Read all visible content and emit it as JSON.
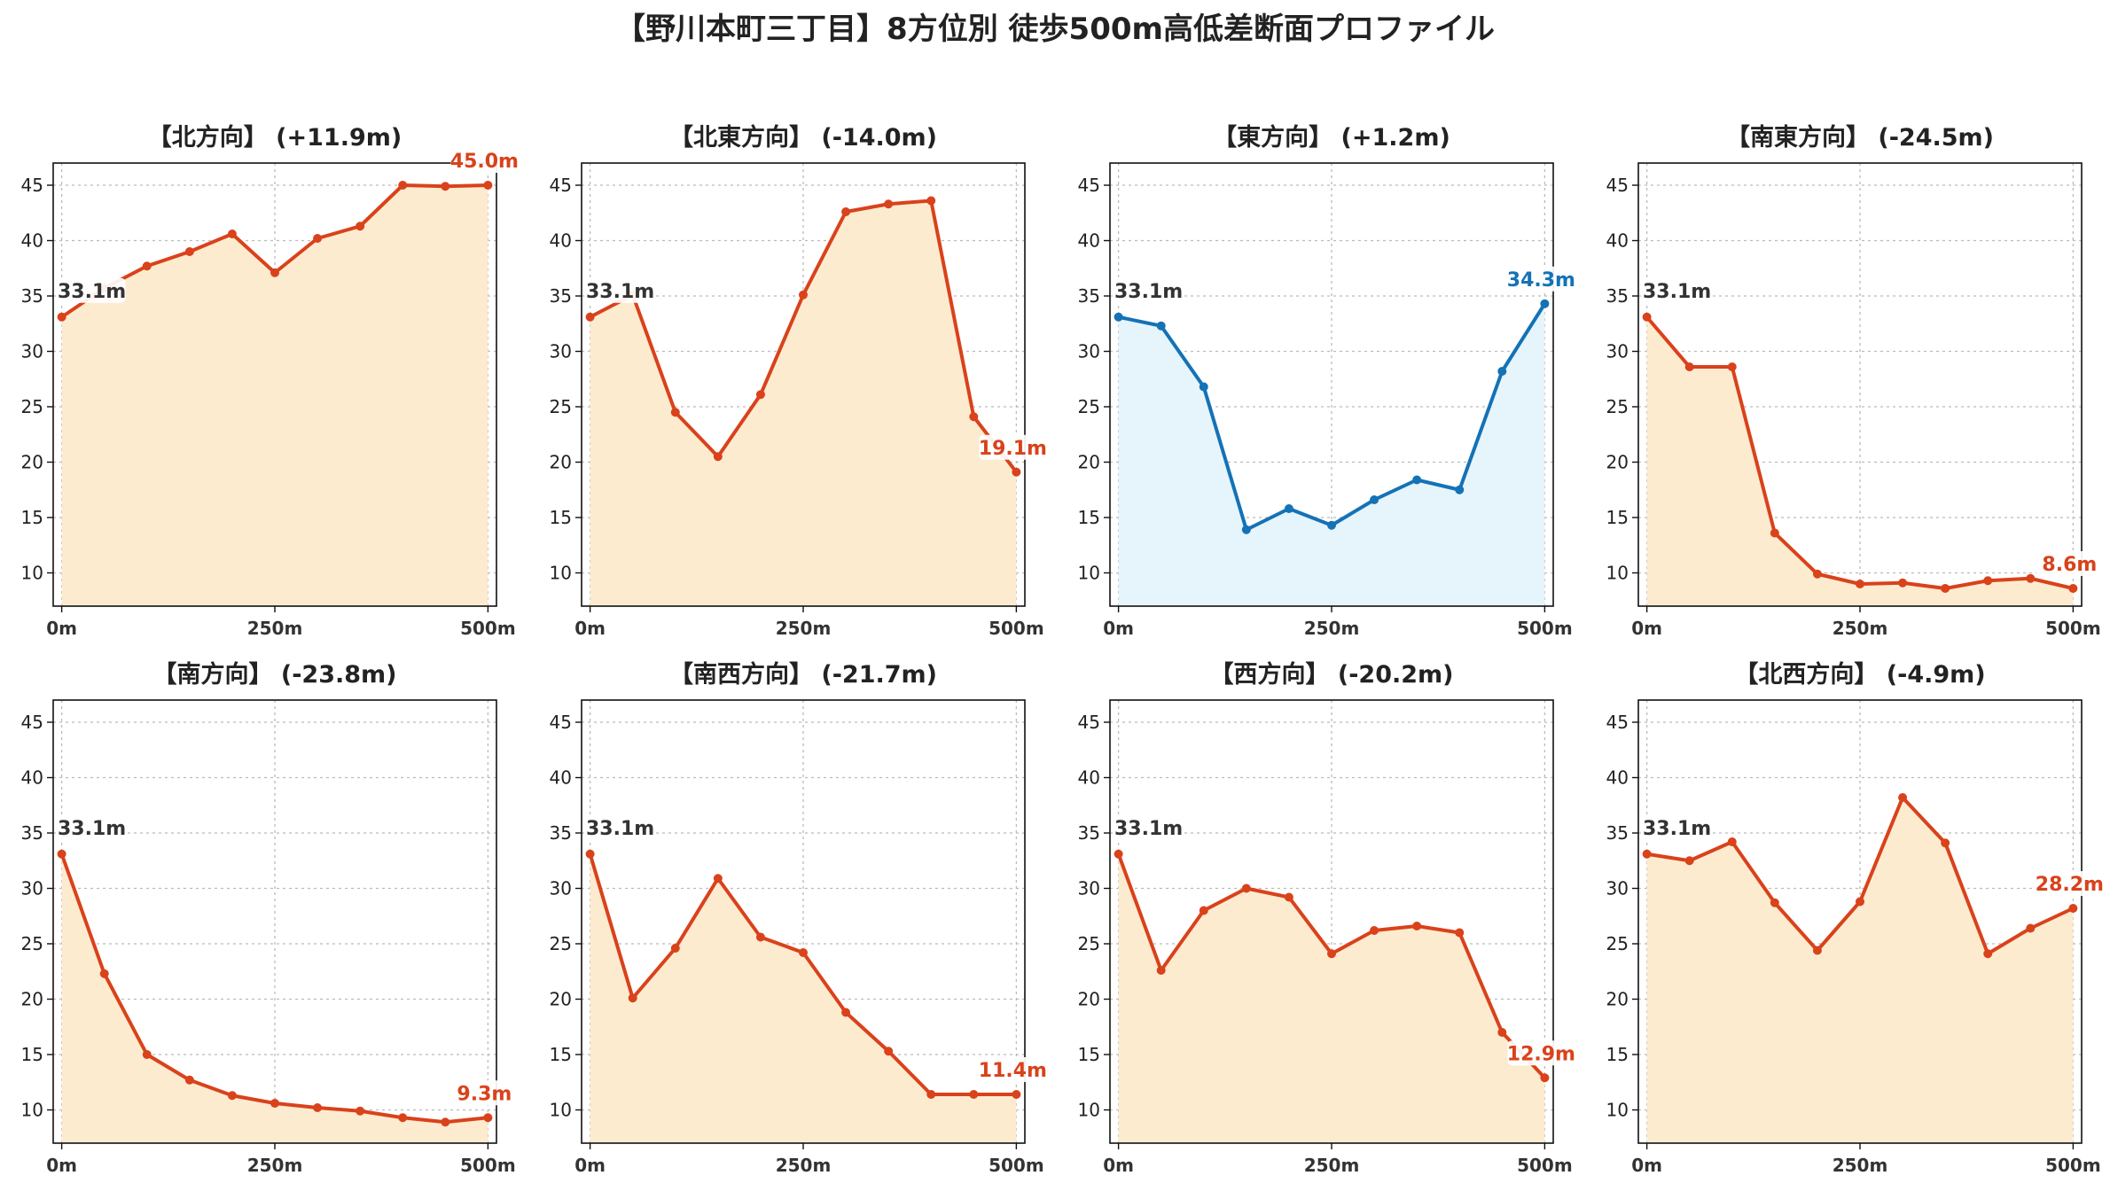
{
  "title": "【野川本町三丁目】8方位別 徒歩500m高低差断面プロファイル",
  "colors": {
    "down": "#d9421b",
    "down_fill": "#fdebd0",
    "up": "#1472b6",
    "up_fill": "#e6f4fb",
    "grid": "#bbbbbb",
    "start_label": "#333333"
  },
  "chart_data": [
    {
      "type": "area",
      "title": "【北方向】 (+11.9m)",
      "x": [
        0,
        50,
        100,
        150,
        200,
        250,
        300,
        350,
        400,
        450,
        500
      ],
      "values": [
        33.1,
        35.7,
        37.7,
        39.0,
        40.6,
        37.1,
        40.2,
        41.3,
        45.0,
        44.9,
        45.0
      ],
      "xticks": [
        "0m",
        "250m",
        "500m"
      ],
      "yticks": [
        10,
        15,
        20,
        25,
        30,
        35,
        40,
        45
      ],
      "ylim": [
        7,
        47
      ],
      "xlim": [
        -10,
        510
      ],
      "start_label": "33.1m",
      "end_label": "45.0m",
      "color": "down",
      "grid": true
    },
    {
      "type": "area",
      "title": "【北東方向】 (-14.0m)",
      "x": [
        0,
        50,
        100,
        150,
        200,
        250,
        300,
        350,
        400,
        450,
        500
      ],
      "values": [
        33.1,
        35.1,
        24.5,
        20.5,
        26.1,
        35.1,
        42.6,
        43.3,
        43.6,
        24.1,
        19.1
      ],
      "xticks": [
        "0m",
        "250m",
        "500m"
      ],
      "yticks": [
        10,
        15,
        20,
        25,
        30,
        35,
        40,
        45
      ],
      "ylim": [
        7,
        47
      ],
      "xlim": [
        -10,
        510
      ],
      "start_label": "33.1m",
      "end_label": "19.1m",
      "color": "down",
      "grid": true
    },
    {
      "type": "area",
      "title": "【東方向】 (+1.2m)",
      "x": [
        0,
        50,
        100,
        150,
        200,
        250,
        300,
        350,
        400,
        450,
        500
      ],
      "values": [
        33.1,
        32.3,
        26.8,
        13.9,
        15.8,
        14.3,
        16.6,
        18.4,
        17.5,
        28.2,
        34.3
      ],
      "xticks": [
        "0m",
        "250m",
        "500m"
      ],
      "yticks": [
        10,
        15,
        20,
        25,
        30,
        35,
        40,
        45
      ],
      "ylim": [
        7,
        47
      ],
      "xlim": [
        -10,
        510
      ],
      "start_label": "33.1m",
      "end_label": "34.3m",
      "color": "up",
      "grid": true
    },
    {
      "type": "area",
      "title": "【南東方向】 (-24.5m)",
      "x": [
        0,
        50,
        100,
        150,
        200,
        250,
        300,
        350,
        400,
        450,
        500
      ],
      "values": [
        33.1,
        28.6,
        28.6,
        13.6,
        9.9,
        9.0,
        9.1,
        8.6,
        9.3,
        9.5,
        8.6
      ],
      "xticks": [
        "0m",
        "250m",
        "500m"
      ],
      "yticks": [
        10,
        15,
        20,
        25,
        30,
        35,
        40,
        45
      ],
      "ylim": [
        7,
        47
      ],
      "xlim": [
        -10,
        510
      ],
      "start_label": "33.1m",
      "end_label": "8.6m",
      "color": "down",
      "grid": true
    },
    {
      "type": "area",
      "title": "【南方向】 (-23.8m)",
      "x": [
        0,
        50,
        100,
        150,
        200,
        250,
        300,
        350,
        400,
        450,
        500
      ],
      "values": [
        33.1,
        22.3,
        15.0,
        12.7,
        11.3,
        10.6,
        10.2,
        9.9,
        9.3,
        8.9,
        9.3
      ],
      "xticks": [
        "0m",
        "250m",
        "500m"
      ],
      "yticks": [
        10,
        15,
        20,
        25,
        30,
        35,
        40,
        45
      ],
      "ylim": [
        7,
        47
      ],
      "xlim": [
        -10,
        510
      ],
      "start_label": "33.1m",
      "end_label": "9.3m",
      "color": "down",
      "grid": true
    },
    {
      "type": "area",
      "title": "【南西方向】 (-21.7m)",
      "x": [
        0,
        50,
        100,
        150,
        200,
        250,
        300,
        350,
        400,
        450,
        500
      ],
      "values": [
        33.1,
        20.1,
        24.6,
        30.9,
        25.6,
        24.2,
        18.8,
        15.3,
        11.4,
        11.4,
        11.4
      ],
      "xticks": [
        "0m",
        "250m",
        "500m"
      ],
      "yticks": [
        10,
        15,
        20,
        25,
        30,
        35,
        40,
        45
      ],
      "ylim": [
        7,
        47
      ],
      "xlim": [
        -10,
        510
      ],
      "start_label": "33.1m",
      "end_label": "11.4m",
      "color": "down",
      "grid": true
    },
    {
      "type": "area",
      "title": "【西方向】 (-20.2m)",
      "x": [
        0,
        50,
        100,
        150,
        200,
        250,
        300,
        350,
        400,
        450,
        500
      ],
      "values": [
        33.1,
        22.6,
        28.0,
        30.0,
        29.2,
        24.1,
        26.2,
        26.6,
        26.0,
        17.0,
        12.9
      ],
      "xticks": [
        "0m",
        "250m",
        "500m"
      ],
      "yticks": [
        10,
        15,
        20,
        25,
        30,
        35,
        40,
        45
      ],
      "ylim": [
        7,
        47
      ],
      "xlim": [
        -10,
        510
      ],
      "start_label": "33.1m",
      "end_label": "12.9m",
      "color": "down",
      "grid": true
    },
    {
      "type": "area",
      "title": "【北西方向】 (-4.9m)",
      "x": [
        0,
        50,
        100,
        150,
        200,
        250,
        300,
        350,
        400,
        450,
        500
      ],
      "values": [
        33.1,
        32.5,
        34.2,
        28.7,
        24.4,
        28.8,
        38.2,
        34.1,
        24.1,
        26.4,
        28.2
      ],
      "xticks": [
        "0m",
        "250m",
        "500m"
      ],
      "yticks": [
        10,
        15,
        20,
        25,
        30,
        35,
        40,
        45
      ],
      "ylim": [
        7,
        47
      ],
      "xlim": [
        -10,
        510
      ],
      "start_label": "33.1m",
      "end_label": "28.2m",
      "color": "down",
      "grid": true
    }
  ]
}
